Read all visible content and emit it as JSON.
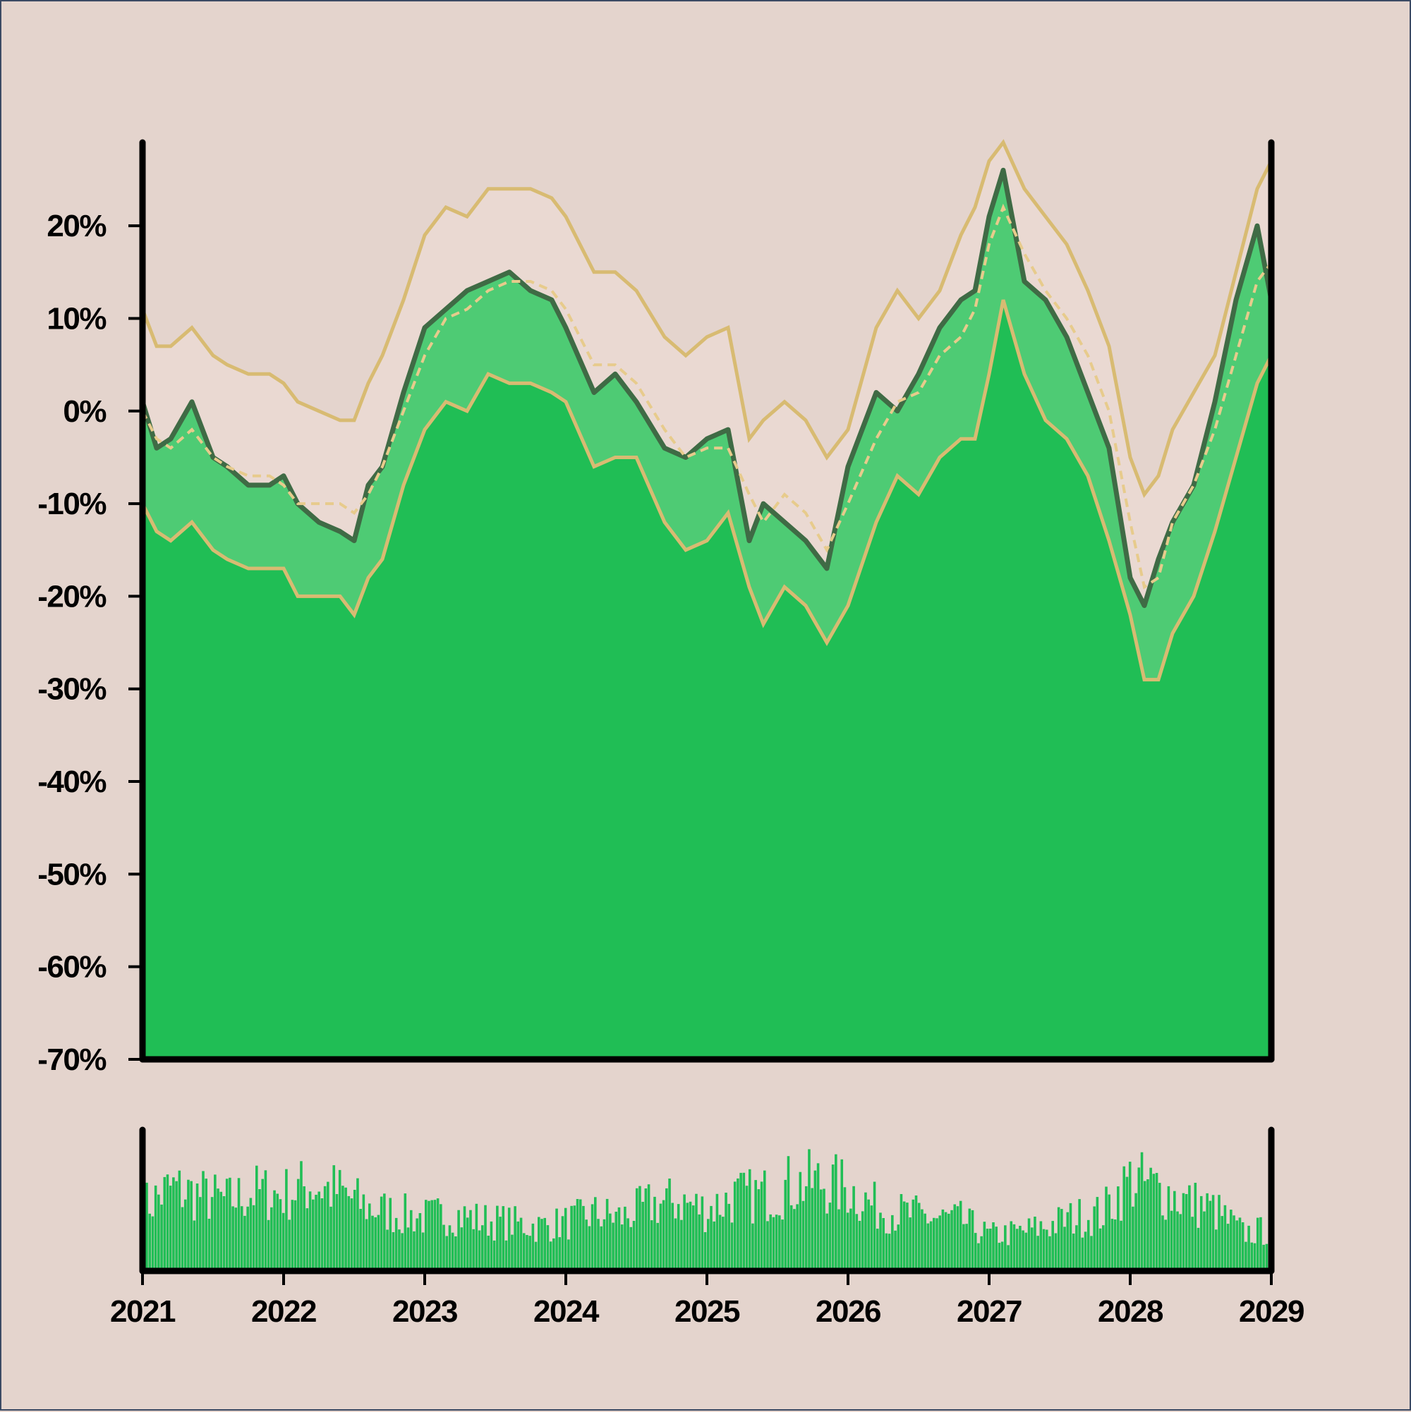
{
  "chart_data": {
    "type": "area",
    "panels": [
      "price",
      "volume"
    ],
    "y_unit": "%",
    "ylim": [
      -70,
      29
    ],
    "yticks": [
      20,
      10,
      0,
      -10,
      -20,
      -30,
      -40,
      -50,
      -60,
      -70
    ],
    "ytick_labels": [
      "20%",
      "10%",
      "0%",
      "-10%",
      "-20%",
      "-30%",
      "-40%",
      "-50%",
      "-60%",
      "-70%"
    ],
    "xlim": [
      2021,
      2029
    ],
    "xticks": [
      2021,
      2022,
      2023,
      2024,
      2025,
      2026,
      2027,
      2028,
      2029
    ],
    "xtick_labels": [
      "2021",
      "2022",
      "2023",
      "2024",
      "2025",
      "2026",
      "2027",
      "2028",
      "2029"
    ],
    "grid": false,
    "legend": "none",
    "colors": {
      "background": "#e4d4cd",
      "area": "#20be55",
      "band": "#4ecb74",
      "price_line": "#3f6b45",
      "envelope": "#d8bb72",
      "axis": "#000000"
    },
    "series": [
      {
        "role": "price",
        "x": [
          2021.0,
          2021.1,
          2021.2,
          2021.35,
          2021.5,
          2021.6,
          2021.75,
          2021.9,
          2022.0,
          2022.1,
          2022.25,
          2022.4,
          2022.5,
          2022.6,
          2022.7,
          2022.85,
          2023.0,
          2023.15,
          2023.3,
          2023.45,
          2023.6,
          2023.75,
          2023.9,
          2024.0,
          2024.2,
          2024.35,
          2024.5,
          2024.7,
          2024.85,
          2025.0,
          2025.15,
          2025.3,
          2025.4,
          2025.55,
          2025.7,
          2025.85,
          2026.0,
          2026.2,
          2026.35,
          2026.5,
          2026.65,
          2026.8,
          2026.9,
          2027.0,
          2027.1,
          2027.25,
          2027.4,
          2027.55,
          2027.7,
          2027.85,
          2028.0,
          2028.1,
          2028.2,
          2028.3,
          2028.45,
          2028.6,
          2028.75,
          2028.9,
          2029.0
        ],
        "y": [
          1,
          -4,
          -3,
          1,
          -5,
          -6,
          -8,
          -8,
          -7,
          -10,
          -12,
          -13,
          -14,
          -8,
          -6,
          2,
          9,
          11,
          13,
          14,
          15,
          13,
          12,
          9,
          2,
          4,
          1,
          -4,
          -5,
          -3,
          -2,
          -14,
          -10,
          -12,
          -14,
          -17,
          -6,
          2,
          0,
          4,
          9,
          12,
          13,
          21,
          26,
          14,
          12,
          8,
          2,
          -4,
          -18,
          -21,
          -16,
          -12,
          -8,
          1,
          12,
          20,
          12
        ]
      },
      {
        "role": "moving_average",
        "x": [
          2021.0,
          2021.1,
          2021.2,
          2021.35,
          2021.5,
          2021.6,
          2021.75,
          2021.9,
          2022.0,
          2022.1,
          2022.25,
          2022.4,
          2022.5,
          2022.6,
          2022.7,
          2022.85,
          2023.0,
          2023.15,
          2023.3,
          2023.45,
          2023.6,
          2023.75,
          2023.9,
          2024.0,
          2024.2,
          2024.35,
          2024.5,
          2024.7,
          2024.85,
          2025.0,
          2025.15,
          2025.3,
          2025.4,
          2025.55,
          2025.7,
          2025.85,
          2026.0,
          2026.2,
          2026.35,
          2026.5,
          2026.65,
          2026.8,
          2026.9,
          2027.0,
          2027.1,
          2027.25,
          2027.4,
          2027.55,
          2027.7,
          2027.85,
          2028.0,
          2028.1,
          2028.2,
          2028.3,
          2028.45,
          2028.6,
          2028.75,
          2028.9,
          2029.0
        ],
        "y": [
          0,
          -3,
          -4,
          -2,
          -5,
          -6,
          -7,
          -7,
          -8,
          -10,
          -10,
          -10,
          -11,
          -9,
          -6,
          0,
          6,
          10,
          11,
          13,
          14,
          14,
          13,
          11,
          5,
          5,
          3,
          -2,
          -5,
          -4,
          -4,
          -9,
          -12,
          -9,
          -11,
          -15,
          -10,
          -3,
          1,
          2,
          6,
          8,
          11,
          18,
          22,
          17,
          13,
          10,
          6,
          0,
          -12,
          -19,
          -18,
          -12,
          -8,
          -2,
          6,
          14,
          16
        ]
      },
      {
        "role": "upper_envelope",
        "x": [
          2021.0,
          2021.1,
          2021.2,
          2021.35,
          2021.5,
          2021.6,
          2021.75,
          2021.9,
          2022.0,
          2022.1,
          2022.25,
          2022.4,
          2022.5,
          2022.6,
          2022.7,
          2022.85,
          2023.0,
          2023.15,
          2023.3,
          2023.45,
          2023.6,
          2023.75,
          2023.9,
          2024.0,
          2024.2,
          2024.35,
          2024.5,
          2024.7,
          2024.85,
          2025.0,
          2025.15,
          2025.3,
          2025.4,
          2025.55,
          2025.7,
          2025.85,
          2026.0,
          2026.2,
          2026.35,
          2026.5,
          2026.65,
          2026.8,
          2026.9,
          2027.0,
          2027.1,
          2027.25,
          2027.4,
          2027.55,
          2027.7,
          2027.85,
          2028.0,
          2028.1,
          2028.2,
          2028.3,
          2028.45,
          2028.6,
          2028.75,
          2028.9,
          2029.0
        ],
        "y": [
          11,
          7,
          7,
          9,
          6,
          5,
          4,
          4,
          3,
          1,
          0,
          -1,
          -1,
          3,
          6,
          12,
          19,
          22,
          21,
          24,
          24,
          24,
          23,
          21,
          15,
          15,
          13,
          8,
          6,
          8,
          9,
          -3,
          -1,
          1,
          -1,
          -5,
          -2,
          9,
          13,
          10,
          13,
          19,
          22,
          27,
          29,
          24,
          21,
          18,
          13,
          7,
          -5,
          -9,
          -7,
          -2,
          2,
          6,
          15,
          24,
          27
        ]
      },
      {
        "role": "lower_envelope",
        "x": [
          2021.0,
          2021.1,
          2021.2,
          2021.35,
          2021.5,
          2021.6,
          2021.75,
          2021.9,
          2022.0,
          2022.1,
          2022.25,
          2022.4,
          2022.5,
          2022.6,
          2022.7,
          2022.85,
          2023.0,
          2023.15,
          2023.3,
          2023.45,
          2023.6,
          2023.75,
          2023.9,
          2024.0,
          2024.2,
          2024.35,
          2024.5,
          2024.7,
          2024.85,
          2025.0,
          2025.15,
          2025.3,
          2025.4,
          2025.55,
          2025.7,
          2025.85,
          2026.0,
          2026.2,
          2026.35,
          2026.5,
          2026.65,
          2026.8,
          2026.9,
          2027.0,
          2027.1,
          2027.25,
          2027.4,
          2027.55,
          2027.7,
          2027.85,
          2028.0,
          2028.1,
          2028.2,
          2028.3,
          2028.45,
          2028.6,
          2028.75,
          2028.9,
          2029.0
        ],
        "y": [
          -10,
          -13,
          -14,
          -12,
          -15,
          -16,
          -17,
          -17,
          -17,
          -20,
          -20,
          -20,
          -22,
          -18,
          -16,
          -8,
          -2,
          1,
          0,
          4,
          3,
          3,
          2,
          1,
          -6,
          -5,
          -5,
          -12,
          -15,
          -14,
          -11,
          -19,
          -23,
          -19,
          -21,
          -25,
          -21,
          -12,
          -7,
          -9,
          -5,
          -3,
          -3,
          4,
          12,
          4,
          -1,
          -3,
          -7,
          -14,
          -22,
          -29,
          -29,
          -24,
          -20,
          -13,
          -5,
          3,
          6
        ]
      }
    ],
    "volume": {
      "x": [
        2021.0,
        2021.2,
        2021.4,
        2021.6,
        2021.8,
        2022.0,
        2022.2,
        2022.4,
        2022.6,
        2022.8,
        2023.0,
        2023.2,
        2023.4,
        2023.6,
        2023.8,
        2024.0,
        2024.2,
        2024.4,
        2024.6,
        2024.8,
        2025.0,
        2025.2,
        2025.4,
        2025.6,
        2025.8,
        2026.0,
        2026.2,
        2026.4,
        2026.6,
        2026.8,
        2027.0,
        2027.2,
        2027.4,
        2027.6,
        2027.8,
        2028.0,
        2028.2,
        2028.4,
        2028.6,
        2028.8,
        2029.0
      ],
      "level": [
        0.5,
        0.65,
        0.6,
        0.55,
        0.62,
        0.6,
        0.68,
        0.62,
        0.5,
        0.45,
        0.42,
        0.45,
        0.4,
        0.38,
        0.35,
        0.38,
        0.45,
        0.42,
        0.52,
        0.55,
        0.48,
        0.58,
        0.6,
        0.68,
        0.7,
        0.65,
        0.5,
        0.45,
        0.42,
        0.4,
        0.28,
        0.3,
        0.35,
        0.42,
        0.45,
        0.72,
        0.65,
        0.55,
        0.48,
        0.3,
        0.32
      ],
      "bars": 380,
      "seed": 7
    }
  }
}
